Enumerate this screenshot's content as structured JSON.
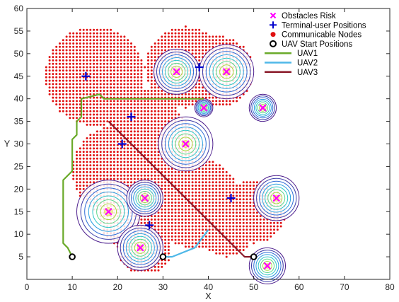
{
  "chart_data": {
    "type": "scatter",
    "title": "",
    "xlabel": "X",
    "ylabel": "Y",
    "xlim": [
      0,
      80
    ],
    "ylim": [
      0,
      60
    ],
    "x_ticks": [
      "0",
      "10",
      "20",
      "30",
      "40",
      "50",
      "60",
      "70",
      "80"
    ],
    "y_ticks": [
      "5",
      "10",
      "15",
      "20",
      "25",
      "30",
      "35",
      "40",
      "45",
      "50",
      "55",
      "60"
    ],
    "grid": false,
    "legend_position": "top-right",
    "colors": {
      "obstacle": "#ff00ff",
      "terminal": "#0000cc",
      "nodes": "#e01010",
      "start": "#000000",
      "uav1": "#6aaa2a",
      "uav2": "#4fb8e8",
      "uav3": "#8b1a2a"
    },
    "legend": [
      {
        "label": "Obstacles Risk",
        "marker": "x"
      },
      {
        "label": "Terminal-user Positions",
        "marker": "plus"
      },
      {
        "label": "Communicable Nodes",
        "marker": "dot"
      },
      {
        "label": "UAV Start Positions",
        "marker": "circle"
      },
      {
        "label": "UAV1",
        "marker": "line"
      },
      {
        "label": "UAV2",
        "marker": "line"
      },
      {
        "label": "UAV3",
        "marker": "line"
      }
    ],
    "obstacles": [
      {
        "x": 33,
        "y": 46,
        "r": 5
      },
      {
        "x": 44,
        "y": 46,
        "r": 6
      },
      {
        "x": 52,
        "y": 38,
        "r": 3
      },
      {
        "x": 39,
        "y": 38,
        "r": 2
      },
      {
        "x": 35,
        "y": 30,
        "r": 6
      },
      {
        "x": 18,
        "y": 15,
        "r": 7
      },
      {
        "x": 26,
        "y": 18,
        "r": 4
      },
      {
        "x": 25,
        "y": 7,
        "r": 5
      },
      {
        "x": 55,
        "y": 18,
        "r": 5
      },
      {
        "x": 53,
        "y": 3,
        "r": 4
      }
    ],
    "terminals": [
      {
        "x": 13,
        "y": 45
      },
      {
        "x": 38,
        "y": 47
      },
      {
        "x": 23,
        "y": 36
      },
      {
        "x": 21,
        "y": 30
      },
      {
        "x": 27,
        "y": 12
      },
      {
        "x": 45,
        "y": 18
      }
    ],
    "node_regions": [
      {
        "cx": 15,
        "cy": 45,
        "r": 11
      },
      {
        "cx": 26,
        "cy": 34,
        "r": 8
      },
      {
        "cx": 35,
        "cy": 47,
        "r": 9
      },
      {
        "cx": 42,
        "cy": 46,
        "r": 8
      },
      {
        "cx": 20,
        "cy": 24,
        "r": 10
      },
      {
        "cx": 30,
        "cy": 28,
        "r": 9
      },
      {
        "cx": 37,
        "cy": 17,
        "r": 10
      },
      {
        "cx": 24,
        "cy": 14,
        "r": 8
      },
      {
        "cx": 26,
        "cy": 7,
        "r": 6
      },
      {
        "cx": 50,
        "cy": 15,
        "r": 7
      },
      {
        "cx": 44,
        "cy": 11,
        "r": 6
      }
    ],
    "start_positions": [
      {
        "x": 10,
        "y": 5
      },
      {
        "x": 30,
        "y": 5
      },
      {
        "x": 50,
        "y": 5
      }
    ],
    "series": [
      {
        "name": "UAV1",
        "x": [
          10,
          9,
          8,
          8,
          10,
          10,
          11,
          11,
          12,
          12,
          16,
          17,
          19,
          39
        ],
        "y": [
          5,
          7,
          8,
          22,
          24,
          31,
          32,
          35,
          36,
          40,
          41,
          40,
          40,
          40
        ]
      },
      {
        "name": "UAV2",
        "x": [
          30,
          31,
          32,
          37,
          40
        ],
        "y": [
          5,
          5,
          5,
          7,
          11
        ]
      },
      {
        "name": "UAV3",
        "x": [
          50,
          48,
          18
        ],
        "y": [
          5,
          5,
          35
        ]
      }
    ]
  }
}
